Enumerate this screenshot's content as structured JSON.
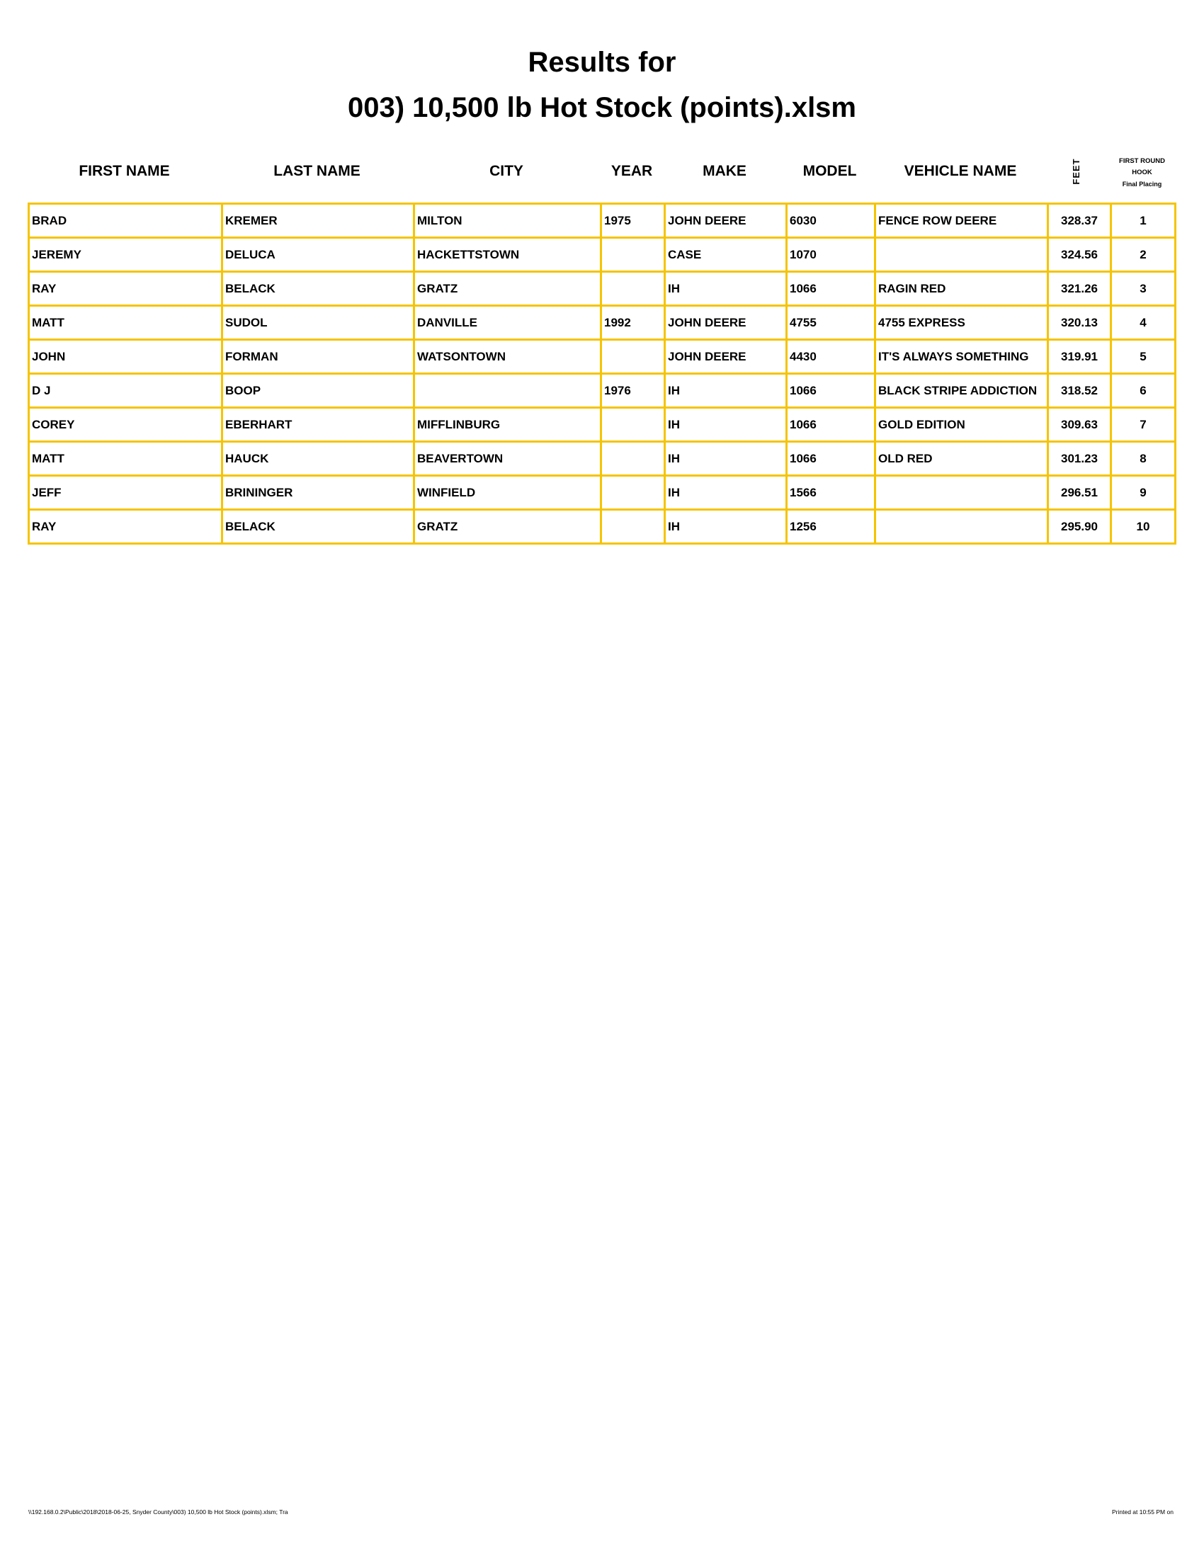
{
  "title_line1": "Results for",
  "title_line2": "003) 10,500 lb Hot Stock (points).xlsm",
  "columns": {
    "first_name": "FIRST NAME",
    "last_name": "LAST NAME",
    "city": "CITY",
    "year": "YEAR",
    "make": "MAKE",
    "model": "MODEL",
    "vehicle_name": "VEHICLE NAME",
    "feet": "FEET",
    "placing_line1": "FIRST ROUND",
    "placing_line2": "HOOK",
    "placing_line3": "Final Placing"
  },
  "rows": [
    [
      "BRAD",
      "KREMER",
      "MILTON",
      "1975",
      "JOHN DEERE",
      "6030",
      "FENCE ROW DEERE",
      "328.37",
      "1"
    ],
    [
      "JEREMY",
      "DELUCA",
      "HACKETTSTOWN",
      "",
      "CASE",
      "1070",
      "",
      "324.56",
      "2"
    ],
    [
      "RAY",
      "BELACK",
      "GRATZ",
      "",
      "IH",
      "1066",
      "RAGIN RED",
      "321.26",
      "3"
    ],
    [
      "MATT",
      "SUDOL",
      "DANVILLE",
      "1992",
      "JOHN DEERE",
      "4755",
      "4755 EXPRESS",
      "320.13",
      "4"
    ],
    [
      "JOHN",
      "FORMAN",
      "WATSONTOWN",
      "",
      "JOHN DEERE",
      "4430",
      "IT'S ALWAYS SOMETHING",
      "319.91",
      "5"
    ],
    [
      "D J",
      "BOOP",
      "",
      "1976",
      "IH",
      "1066",
      "BLACK STRIPE ADDICTION",
      "318.52",
      "6"
    ],
    [
      "COREY",
      "EBERHART",
      "MIFFLINBURG",
      "",
      "IH",
      "1066",
      "GOLD EDITION",
      "309.63",
      "7"
    ],
    [
      "MATT",
      "HAUCK",
      "BEAVERTOWN",
      "",
      "IH",
      "1066",
      "OLD RED",
      "301.23",
      "8"
    ],
    [
      "JEFF",
      "BRININGER",
      "WINFIELD",
      "",
      "IH",
      "1566",
      "",
      "296.51",
      "9"
    ],
    [
      "RAY",
      "BELACK",
      "GRATZ",
      "",
      "IH",
      "1256",
      "",
      "295.90",
      "10"
    ]
  ],
  "footer_left": "\\\\192.168.0.2\\Public\\2018\\2018-06-25, Snyder County\\003) 10,500 lb Hot Stock (points).xlsm;  Tra",
  "footer_right": "Printed at 10:55 PM on",
  "colors": {
    "grid": "#f5c400"
  }
}
